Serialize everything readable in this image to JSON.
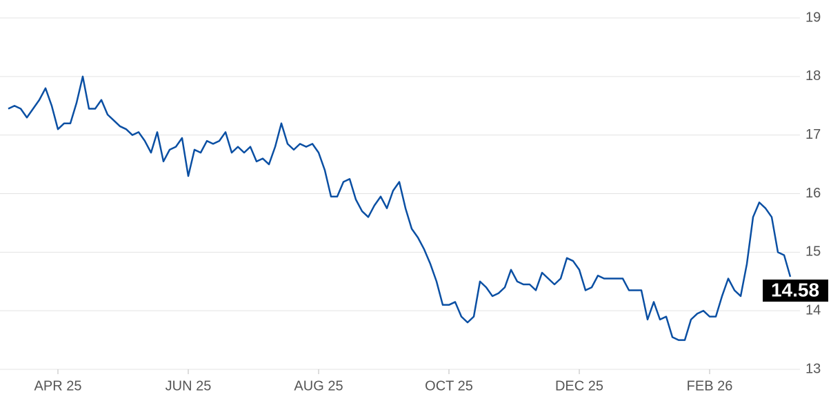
{
  "chart_data": {
    "type": "line",
    "categories": [
      null,
      null,
      null,
      null,
      null,
      null,
      null,
      null,
      "APR 25",
      null,
      null,
      null,
      null,
      null,
      null,
      null,
      null,
      null,
      null,
      null,
      null,
      null,
      null,
      null,
      null,
      null,
      null,
      null,
      null,
      "JUN 25",
      null,
      null,
      null,
      null,
      null,
      null,
      null,
      null,
      null,
      null,
      null,
      null,
      null,
      null,
      null,
      null,
      null,
      null,
      null,
      null,
      "AUG 25",
      null,
      null,
      null,
      null,
      null,
      null,
      null,
      null,
      null,
      null,
      null,
      null,
      null,
      null,
      null,
      null,
      null,
      null,
      null,
      null,
      "OCT 25",
      null,
      null,
      null,
      null,
      null,
      null,
      null,
      null,
      null,
      null,
      null,
      null,
      null,
      null,
      null,
      null,
      null,
      null,
      null,
      null,
      "DEC 25",
      null,
      null,
      null,
      null,
      null,
      null,
      null,
      null,
      null,
      null,
      null,
      null,
      null,
      null,
      null,
      null,
      null,
      null,
      null,
      null,
      "FEB 26",
      null,
      null,
      null,
      null,
      null,
      null,
      null,
      null,
      null,
      null,
      null,
      null,
      null
    ],
    "series": [
      {
        "color": "#0a4fa3",
        "values": [
          17.45,
          17.5,
          17.45,
          17.3,
          17.45,
          17.6,
          17.8,
          17.5,
          17.1,
          17.2,
          17.2,
          17.55,
          18.0,
          17.45,
          17.45,
          17.6,
          17.35,
          17.25,
          17.15,
          17.1,
          17.0,
          17.05,
          16.9,
          16.7,
          17.05,
          16.55,
          16.75,
          16.8,
          16.95,
          16.3,
          16.75,
          16.7,
          16.9,
          16.85,
          16.9,
          17.05,
          16.7,
          16.8,
          16.7,
          16.8,
          16.55,
          16.6,
          16.5,
          16.8,
          17.2,
          16.85,
          16.75,
          16.85,
          16.8,
          16.85,
          16.7,
          16.4,
          15.95,
          15.95,
          16.2,
          16.25,
          15.9,
          15.7,
          15.6,
          15.8,
          15.95,
          15.75,
          16.05,
          16.2,
          15.75,
          15.4,
          15.25,
          15.05,
          14.8,
          14.5,
          14.1,
          14.1,
          14.15,
          13.9,
          13.8,
          13.9,
          14.5,
          14.4,
          14.25,
          14.3,
          14.4,
          14.7,
          14.5,
          14.45,
          14.45,
          14.35,
          14.65,
          14.55,
          14.45,
          14.55,
          14.9,
          14.85,
          14.7,
          14.35,
          14.4,
          14.6,
          14.55,
          14.55,
          14.55,
          14.55,
          14.35,
          14.35,
          14.35,
          13.85,
          14.15,
          13.85,
          13.9,
          13.55,
          13.5,
          13.5,
          13.85,
          13.95,
          14.0,
          13.9,
          13.9,
          14.25,
          14.55,
          14.35,
          14.25,
          14.8,
          15.6,
          15.85,
          15.75,
          15.6,
          15.0,
          14.95,
          14.58
        ]
      }
    ],
    "ylim": [
      13,
      19
    ],
    "yticks": [
      13,
      14,
      15,
      16,
      17,
      18,
      19
    ],
    "grid": true
  }
}
